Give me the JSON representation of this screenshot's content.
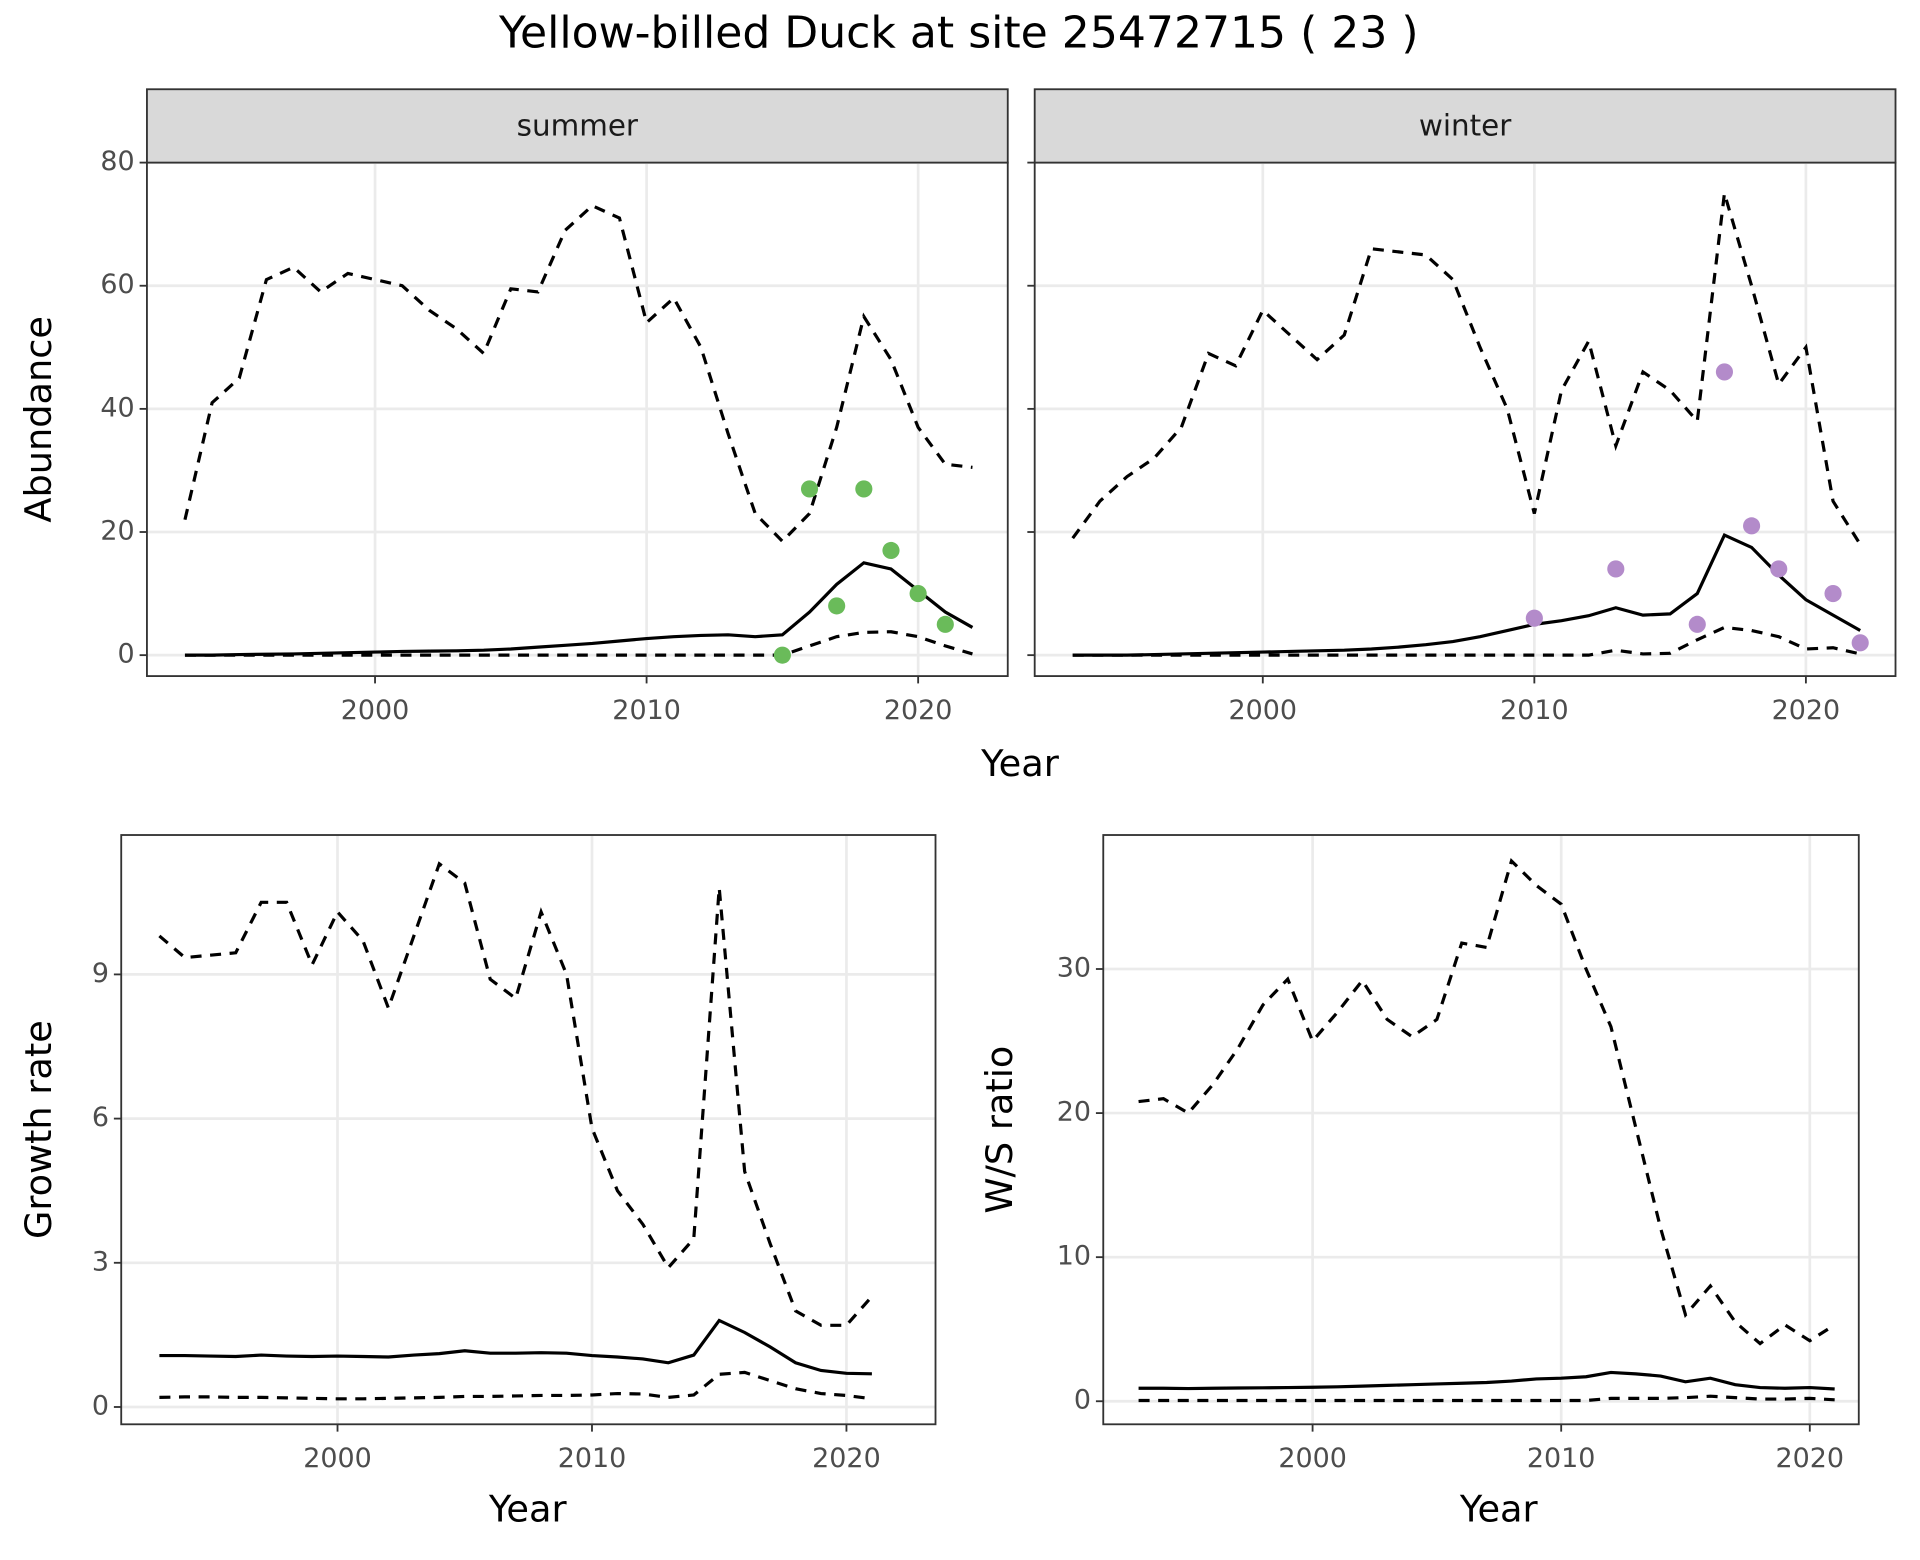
{
  "title": "Yellow-billed Duck at site 25472715 ( 23 )",
  "chart_data": [
    {
      "type": "line",
      "facet": "summer",
      "ylabel": "Abundance",
      "xlabel": "Year",
      "xlim": [
        1991.6,
        2023.3
      ],
      "ylim": [
        -3.4,
        80
      ],
      "xticks": [
        2000,
        2010,
        2020
      ],
      "yticks": [
        0,
        20,
        40,
        60,
        80
      ],
      "grid": true,
      "series": [
        {
          "style": "dashed",
          "color": "#000000",
          "x": [
            1993,
            1994,
            1995,
            1996,
            1997,
            1998,
            1999,
            2000,
            2001,
            2002,
            2003,
            2004,
            2005,
            2006,
            2007,
            2008,
            2009,
            2010,
            2011,
            2012,
            2013,
            2014,
            2015,
            2016,
            2017,
            2018,
            2019,
            2020,
            2021,
            2022
          ],
          "values": [
            22,
            41,
            45,
            61,
            63,
            59,
            62,
            61,
            60,
            56,
            53,
            49,
            59.5,
            59,
            69,
            73,
            71,
            54,
            58,
            50,
            36,
            23,
            18.5,
            23,
            37,
            55,
            48,
            37,
            31,
            30.5
          ]
        },
        {
          "style": "solid",
          "color": "#000000",
          "x": [
            1993,
            1994,
            1995,
            1996,
            1997,
            1998,
            1999,
            2000,
            2001,
            2002,
            2003,
            2004,
            2005,
            2006,
            2007,
            2008,
            2009,
            2010,
            2011,
            2012,
            2013,
            2014,
            2015,
            2016,
            2017,
            2018,
            2019,
            2020,
            2021,
            2022
          ],
          "values": [
            0,
            0,
            0.1,
            0.15,
            0.2,
            0.3,
            0.4,
            0.5,
            0.6,
            0.65,
            0.7,
            0.8,
            1,
            1.3,
            1.6,
            1.9,
            2.3,
            2.7,
            3,
            3.2,
            3.3,
            3,
            3.3,
            7,
            11.5,
            15,
            14,
            10.5,
            7,
            4.5
          ]
        },
        {
          "style": "dashed",
          "color": "#000000",
          "x": [
            1993,
            1994,
            1995,
            1996,
            1997,
            1998,
            1999,
            2000,
            2001,
            2002,
            2003,
            2004,
            2005,
            2006,
            2007,
            2008,
            2009,
            2010,
            2011,
            2012,
            2013,
            2014,
            2015,
            2016,
            2017,
            2018,
            2019,
            2020,
            2021,
            2022
          ],
          "values": [
            0,
            0,
            0,
            0,
            0,
            0,
            0,
            0,
            0,
            0,
            0,
            0,
            0,
            0,
            0,
            0,
            0,
            0,
            0,
            0,
            0,
            0,
            0,
            1.5,
            3,
            3.7,
            3.8,
            3,
            1.5,
            0.2
          ]
        },
        {
          "style": "points",
          "color": "#6abb5a",
          "x": [
            2015,
            2016,
            2017,
            2018,
            2019,
            2020,
            2021
          ],
          "values": [
            0,
            27,
            8,
            27,
            17,
            10,
            5
          ]
        }
      ]
    },
    {
      "type": "line",
      "facet": "winter",
      "show_ytick_labels": false,
      "xlim": [
        1991.6,
        2023.3
      ],
      "ylim": [
        -3.4,
        80
      ],
      "xticks": [
        2000,
        2010,
        2020
      ],
      "yticks": [
        0,
        20,
        40,
        60,
        80
      ],
      "grid": true,
      "series": [
        {
          "style": "dashed",
          "color": "#000000",
          "x": [
            1993,
            1994,
            1995,
            1996,
            1997,
            1998,
            1999,
            2000,
            2001,
            2002,
            2003,
            2004,
            2005,
            2006,
            2007,
            2008,
            2009,
            2010,
            2011,
            2012,
            2013,
            2014,
            2015,
            2016,
            2017,
            2018,
            2019,
            2020,
            2021,
            2022
          ],
          "values": [
            19,
            25,
            29,
            32,
            37,
            49,
            47,
            56,
            52,
            48,
            52,
            66,
            65.5,
            65,
            61,
            50,
            40,
            23,
            43,
            51,
            34,
            46,
            43,
            38,
            75,
            60,
            44,
            50,
            25,
            18
          ]
        },
        {
          "style": "solid",
          "color": "#000000",
          "x": [
            1993,
            1994,
            1995,
            1996,
            1997,
            1998,
            1999,
            2000,
            2001,
            2002,
            2003,
            2004,
            2005,
            2006,
            2007,
            2008,
            2009,
            2010,
            2011,
            2012,
            2013,
            2014,
            2015,
            2016,
            2017,
            2018,
            2019,
            2020,
            2021,
            2022
          ],
          "values": [
            0,
            0,
            0,
            0.1,
            0.2,
            0.3,
            0.4,
            0.5,
            0.6,
            0.7,
            0.8,
            1,
            1.3,
            1.7,
            2.2,
            3,
            4,
            5,
            5.6,
            6.4,
            7.7,
            6.5,
            6.7,
            10,
            19.5,
            17.5,
            13,
            9,
            6.5,
            4
          ]
        },
        {
          "style": "dashed",
          "color": "#000000",
          "x": [
            1993,
            1994,
            1995,
            1996,
            1997,
            1998,
            1999,
            2000,
            2001,
            2002,
            2003,
            2004,
            2005,
            2006,
            2007,
            2008,
            2009,
            2010,
            2011,
            2012,
            2013,
            2014,
            2015,
            2016,
            2017,
            2018,
            2019,
            2020,
            2021,
            2022
          ],
          "values": [
            0,
            0,
            0,
            0,
            0,
            0,
            0,
            0,
            0,
            0,
            0,
            0,
            0,
            0,
            0,
            0,
            0,
            0,
            0,
            0,
            0.8,
            0.2,
            0.3,
            2.5,
            4.5,
            4,
            3,
            1,
            1.2,
            0.2
          ]
        },
        {
          "style": "points",
          "color": "#b38bca",
          "x": [
            2010,
            2013,
            2016,
            2017,
            2018,
            2019,
            2021,
            2022
          ],
          "values": [
            6,
            14,
            5,
            46,
            21,
            14,
            10,
            2
          ]
        }
      ]
    },
    {
      "type": "line",
      "ylabel": "Growth rate",
      "xlabel": "Year",
      "xlim": [
        1991.5,
        2023.5
      ],
      "ylim": [
        -0.36,
        11.9
      ],
      "xticks": [
        2000,
        2010,
        2020
      ],
      "yticks": [
        0,
        3,
        6,
        9
      ],
      "grid": true,
      "series": [
        {
          "style": "dashed",
          "color": "#000000",
          "x": [
            1993,
            1994,
            1995,
            1996,
            1997,
            1998,
            1999,
            2000,
            2001,
            2002,
            2003,
            2004,
            2005,
            2006,
            2007,
            2008,
            2009,
            2010,
            2011,
            2012,
            2013,
            2014,
            2015,
            2016,
            2017,
            2018,
            2019,
            2020,
            2021
          ],
          "values": [
            9.8,
            9.35,
            9.4,
            9.45,
            10.5,
            10.5,
            9.2,
            10.3,
            9.7,
            8.3,
            9.8,
            11.3,
            10.9,
            8.9,
            8.5,
            10.3,
            9,
            5.8,
            4.5,
            3.8,
            2.9,
            3.5,
            10.8,
            4.9,
            3.4,
            2,
            1.7,
            1.7,
            2.3
          ]
        },
        {
          "style": "solid",
          "color": "#000000",
          "x": [
            1993,
            1994,
            1995,
            1996,
            1997,
            1998,
            1999,
            2000,
            2001,
            2002,
            2003,
            2004,
            2005,
            2006,
            2007,
            2008,
            2009,
            2010,
            2011,
            2012,
            2013,
            2014,
            2015,
            2016,
            2017,
            2018,
            2019,
            2020,
            2021
          ],
          "values": [
            1.07,
            1.07,
            1.06,
            1.05,
            1.08,
            1.06,
            1.05,
            1.06,
            1.05,
            1.04,
            1.08,
            1.11,
            1.17,
            1.12,
            1.12,
            1.13,
            1.12,
            1.07,
            1.04,
            1,
            0.92,
            1.08,
            1.8,
            1.55,
            1.25,
            0.92,
            0.76,
            0.7,
            0.69
          ]
        },
        {
          "style": "dashed",
          "color": "#000000",
          "x": [
            1993,
            1994,
            1995,
            1996,
            1997,
            1998,
            1999,
            2000,
            2001,
            2002,
            2003,
            2004,
            2005,
            2006,
            2007,
            2008,
            2009,
            2010,
            2011,
            2012,
            2013,
            2014,
            2015,
            2016,
            2017,
            2018,
            2019,
            2020,
            2021
          ],
          "values": [
            0.2,
            0.21,
            0.21,
            0.2,
            0.2,
            0.19,
            0.18,
            0.17,
            0.17,
            0.18,
            0.19,
            0.2,
            0.22,
            0.22,
            0.23,
            0.24,
            0.24,
            0.25,
            0.28,
            0.27,
            0.2,
            0.25,
            0.68,
            0.72,
            0.55,
            0.38,
            0.28,
            0.24,
            0.17
          ]
        }
      ]
    },
    {
      "type": "line",
      "ylabel": "W/S ratio",
      "xlabel": "Year",
      "xlim": [
        1991.58,
        2021.97
      ],
      "ylim": [
        -1.6,
        39.3
      ],
      "xticks": [
        2000,
        2010,
        2020
      ],
      "yticks": [
        0,
        10,
        20,
        30
      ],
      "grid": true,
      "series": [
        {
          "style": "dashed",
          "color": "#000000",
          "x": [
            1993,
            1994,
            1995,
            1996,
            1997,
            1998,
            1999,
            2000,
            2001,
            2002,
            2003,
            2004,
            2005,
            2006,
            2007,
            2008,
            2009,
            2010,
            2011,
            2012,
            2013,
            2014,
            2015,
            2016,
            2017,
            2018,
            2019,
            2020,
            2021
          ],
          "values": [
            20.8,
            21,
            20,
            22,
            24.5,
            27.5,
            29.3,
            25,
            27,
            29.2,
            26.5,
            25.3,
            26.5,
            31.8,
            31.5,
            37.5,
            35.8,
            34.5,
            30,
            26,
            19,
            12,
            6,
            8,
            5.5,
            4,
            5.3,
            4.2,
            5.3
          ]
        },
        {
          "style": "solid",
          "color": "#000000",
          "x": [
            1993,
            1994,
            1995,
            1996,
            1997,
            1998,
            1999,
            2000,
            2001,
            2002,
            2003,
            2004,
            2005,
            2006,
            2007,
            2008,
            2009,
            2010,
            2011,
            2012,
            2013,
            2014,
            2015,
            2016,
            2017,
            2018,
            2019,
            2020,
            2021
          ],
          "values": [
            0.9,
            0.9,
            0.88,
            0.9,
            0.92,
            0.93,
            0.95,
            0.97,
            1,
            1.05,
            1.1,
            1.15,
            1.2,
            1.25,
            1.3,
            1.4,
            1.55,
            1.6,
            1.7,
            2,
            1.9,
            1.75,
            1.35,
            1.6,
            1.15,
            0.95,
            0.9,
            0.95,
            0.85
          ]
        },
        {
          "style": "dashed",
          "color": "#000000",
          "x": [
            1993,
            1994,
            1995,
            1996,
            1997,
            1998,
            1999,
            2000,
            2001,
            2002,
            2003,
            2004,
            2005,
            2006,
            2007,
            2008,
            2009,
            2010,
            2011,
            2012,
            2013,
            2014,
            2015,
            2016,
            2017,
            2018,
            2019,
            2020,
            2021
          ],
          "values": [
            0.05,
            0.05,
            0.05,
            0.05,
            0.05,
            0.05,
            0.05,
            0.05,
            0.05,
            0.05,
            0.05,
            0.05,
            0.05,
            0.05,
            0.05,
            0.05,
            0.05,
            0.05,
            0.05,
            0.2,
            0.2,
            0.2,
            0.25,
            0.35,
            0.25,
            0.15,
            0.15,
            0.2,
            0.1
          ]
        }
      ]
    }
  ]
}
